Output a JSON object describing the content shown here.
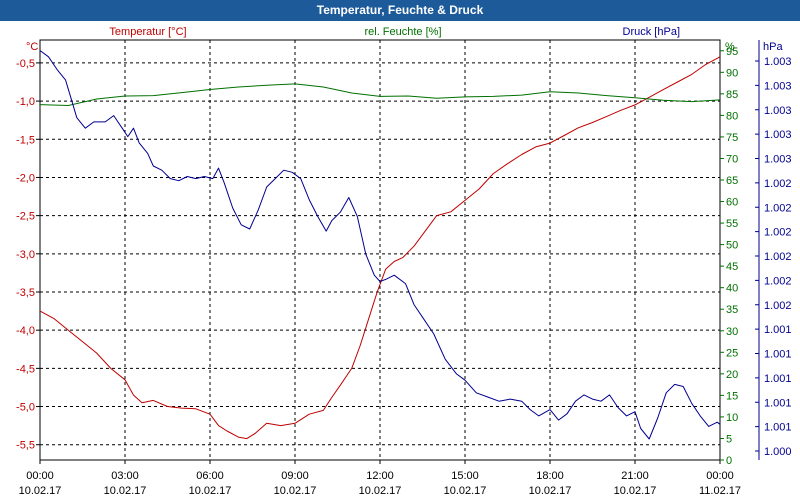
{
  "window": {
    "title": "Temperatur, Feuchte & Druck"
  },
  "chart_data": {
    "type": "line",
    "title": "Temperatur, Feuchte & Druck",
    "colors": {
      "temperature": "#c00000",
      "humidity": "#007000",
      "pressure": "#000090",
      "grid": "#000000",
      "title_bg": "#1c5a9a"
    },
    "axes": {
      "left": {
        "unit": "°C",
        "label": "Temperatur [°C]",
        "range": [
          -5.7,
          -0.2
        ],
        "ticks": [
          -0.5,
          -1.0,
          -1.5,
          -2.0,
          -2.5,
          -3.0,
          -3.5,
          -4.0,
          -4.5,
          -5.0,
          -5.5
        ],
        "tick_labels": [
          "-0,5",
          "-1,0",
          "-1,5",
          "-2,0",
          "-2,5",
          "-3,0",
          "-3,5",
          "-4,0",
          "-4,5",
          "-5,0",
          "-5,5"
        ]
      },
      "humidity": {
        "unit": "%",
        "label": "rel. Feuchte [%]",
        "range": [
          0,
          97.5
        ],
        "ticks": [
          95,
          90,
          85,
          80,
          75,
          70,
          65,
          60,
          55,
          50,
          45,
          40,
          35,
          30,
          25,
          20,
          15,
          10,
          5,
          0
        ],
        "tick_labels": [
          "95",
          "90",
          "85",
          "80",
          "75",
          "70",
          "65",
          "60",
          "55",
          "50",
          "45",
          "40",
          "35",
          "30",
          "25",
          "20",
          "15",
          "10",
          "5",
          "0"
        ]
      },
      "pressure": {
        "unit": "hPa",
        "label": "Druck [hPa]",
        "range": [
          0,
          1
        ],
        "tick_labels": [
          "1.003",
          "1.003",
          "1.003",
          "1.003",
          "1.003",
          "1.002",
          "1.002",
          "1.002",
          "1.002",
          "1.002",
          "1.002",
          "1.001",
          "1.001",
          "1.001",
          "1.001",
          "1.001",
          "1.000"
        ]
      },
      "x": {
        "range": [
          0,
          24
        ],
        "ticks": [
          0,
          3,
          6,
          9,
          12,
          15,
          18,
          21,
          24
        ],
        "time_labels": [
          "00:00",
          "03:00",
          "06:00",
          "09:00",
          "12:00",
          "15:00",
          "18:00",
          "21:00",
          "00:00"
        ],
        "date_labels": [
          "10.02.17",
          "10.02.17",
          "10.02.17",
          "10.02.17",
          "10.02.17",
          "10.02.17",
          "10.02.17",
          "10.02.17",
          "11.02.17"
        ]
      }
    },
    "series": [
      {
        "name": "Temperatur [°C]",
        "axis": "left",
        "color": "#c00000",
        "points": [
          [
            0,
            -3.75
          ],
          [
            0.5,
            -3.85
          ],
          [
            1,
            -4.0
          ],
          [
            1.5,
            -4.15
          ],
          [
            2,
            -4.3
          ],
          [
            2.5,
            -4.5
          ],
          [
            3,
            -4.65
          ],
          [
            3.3,
            -4.85
          ],
          [
            3.6,
            -4.95
          ],
          [
            4,
            -4.92
          ],
          [
            4.5,
            -5.0
          ],
          [
            5,
            -5.02
          ],
          [
            5.5,
            -5.03
          ],
          [
            6,
            -5.1
          ],
          [
            6.3,
            -5.25
          ],
          [
            6.6,
            -5.32
          ],
          [
            7,
            -5.4
          ],
          [
            7.3,
            -5.42
          ],
          [
            7.6,
            -5.35
          ],
          [
            8,
            -5.22
          ],
          [
            8.5,
            -5.25
          ],
          [
            9,
            -5.22
          ],
          [
            9.5,
            -5.1
          ],
          [
            10,
            -5.05
          ],
          [
            10.3,
            -4.88
          ],
          [
            10.6,
            -4.72
          ],
          [
            11,
            -4.5
          ],
          [
            11.3,
            -4.2
          ],
          [
            11.6,
            -3.85
          ],
          [
            11.9,
            -3.5
          ],
          [
            12.2,
            -3.2
          ],
          [
            12.5,
            -3.1
          ],
          [
            12.8,
            -3.05
          ],
          [
            13.2,
            -2.9
          ],
          [
            13.6,
            -2.7
          ],
          [
            14,
            -2.5
          ],
          [
            14.5,
            -2.45
          ],
          [
            15,
            -2.3
          ],
          [
            15.5,
            -2.15
          ],
          [
            16,
            -1.95
          ],
          [
            16.5,
            -1.82
          ],
          [
            17,
            -1.7
          ],
          [
            17.5,
            -1.6
          ],
          [
            18,
            -1.55
          ],
          [
            18.5,
            -1.45
          ],
          [
            19,
            -1.35
          ],
          [
            19.5,
            -1.28
          ],
          [
            20,
            -1.2
          ],
          [
            20.5,
            -1.12
          ],
          [
            21,
            -1.05
          ],
          [
            21.5,
            -0.95
          ],
          [
            22,
            -0.85
          ],
          [
            22.5,
            -0.75
          ],
          [
            23,
            -0.65
          ],
          [
            23.5,
            -0.52
          ],
          [
            24,
            -0.42
          ]
        ]
      },
      {
        "name": "rel. Feuchte [%]",
        "axis": "humidity",
        "color": "#007000",
        "points": [
          [
            0,
            82.5
          ],
          [
            1,
            82.3
          ],
          [
            2,
            83.8
          ],
          [
            3,
            84.5
          ],
          [
            4,
            84.6
          ],
          [
            5,
            85.3
          ],
          [
            6,
            86.0
          ],
          [
            7,
            86.6
          ],
          [
            8,
            87.0
          ],
          [
            9,
            87.3
          ],
          [
            10,
            86.6
          ],
          [
            11,
            85.2
          ],
          [
            12,
            84.4
          ],
          [
            13,
            84.5
          ],
          [
            14,
            84.0
          ],
          [
            15,
            84.3
          ],
          [
            16,
            84.4
          ],
          [
            17,
            84.7
          ],
          [
            18,
            85.5
          ],
          [
            19,
            85.2
          ],
          [
            20,
            84.6
          ],
          [
            21,
            84.1
          ],
          [
            22,
            83.5
          ],
          [
            23,
            83.2
          ],
          [
            24,
            83.6
          ]
        ]
      },
      {
        "name": "Druck [hPa]",
        "axis": "pressure",
        "color": "#000090",
        "points": [
          [
            0,
            0.975
          ],
          [
            0.3,
            0.96
          ],
          [
            0.6,
            0.93
          ],
          [
            0.9,
            0.905
          ],
          [
            1.1,
            0.86
          ],
          [
            1.3,
            0.815
          ],
          [
            1.6,
            0.79
          ],
          [
            1.9,
            0.805
          ],
          [
            2.3,
            0.805
          ],
          [
            2.6,
            0.82
          ],
          [
            2.9,
            0.79
          ],
          [
            3.1,
            0.77
          ],
          [
            3.3,
            0.79
          ],
          [
            3.5,
            0.755
          ],
          [
            3.8,
            0.73
          ],
          [
            4,
            0.7
          ],
          [
            4.3,
            0.69
          ],
          [
            4.6,
            0.67
          ],
          [
            4.9,
            0.665
          ],
          [
            5.2,
            0.675
          ],
          [
            5.5,
            0.67
          ],
          [
            5.8,
            0.675
          ],
          [
            6.1,
            0.67
          ],
          [
            6.3,
            0.695
          ],
          [
            6.5,
            0.66
          ],
          [
            6.8,
            0.6
          ],
          [
            7.1,
            0.56
          ],
          [
            7.4,
            0.55
          ],
          [
            7.7,
            0.595
          ],
          [
            8,
            0.65
          ],
          [
            8.3,
            0.67
          ],
          [
            8.6,
            0.69
          ],
          [
            8.9,
            0.685
          ],
          [
            9.2,
            0.67
          ],
          [
            9.5,
            0.62
          ],
          [
            9.8,
            0.58
          ],
          [
            10.1,
            0.545
          ],
          [
            10.3,
            0.57
          ],
          [
            10.6,
            0.59
          ],
          [
            10.9,
            0.625
          ],
          [
            11.2,
            0.58
          ],
          [
            11.5,
            0.49
          ],
          [
            11.8,
            0.44
          ],
          [
            12,
            0.425
          ],
          [
            12.2,
            0.43
          ],
          [
            12.5,
            0.44
          ],
          [
            12.9,
            0.42
          ],
          [
            13.2,
            0.37
          ],
          [
            13.5,
            0.34
          ],
          [
            13.9,
            0.3
          ],
          [
            14.3,
            0.24
          ],
          [
            14.7,
            0.205
          ],
          [
            15,
            0.19
          ],
          [
            15.4,
            0.16
          ],
          [
            15.8,
            0.15
          ],
          [
            16.2,
            0.14
          ],
          [
            16.6,
            0.145
          ],
          [
            17,
            0.14
          ],
          [
            17.3,
            0.12
          ],
          [
            17.6,
            0.105
          ],
          [
            18,
            0.12
          ],
          [
            18.3,
            0.095
          ],
          [
            18.6,
            0.11
          ],
          [
            18.9,
            0.14
          ],
          [
            19.2,
            0.155
          ],
          [
            19.5,
            0.145
          ],
          [
            19.8,
            0.14
          ],
          [
            20.1,
            0.155
          ],
          [
            20.4,
            0.125
          ],
          [
            20.7,
            0.105
          ],
          [
            21,
            0.115
          ],
          [
            21.2,
            0.075
          ],
          [
            21.5,
            0.05
          ],
          [
            21.8,
            0.1
          ],
          [
            22.1,
            0.16
          ],
          [
            22.4,
            0.18
          ],
          [
            22.7,
            0.175
          ],
          [
            23,
            0.135
          ],
          [
            23.3,
            0.105
          ],
          [
            23.6,
            0.08
          ],
          [
            23.9,
            0.09
          ],
          [
            24,
            0.085
          ]
        ]
      }
    ]
  }
}
